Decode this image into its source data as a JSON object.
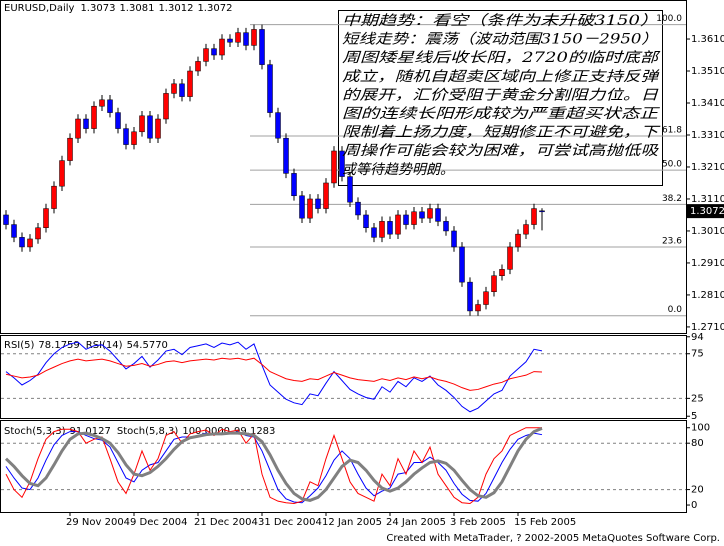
{
  "chart_data": [
    {
      "type": "candlestick",
      "title": "EURUSD,Daily",
      "categories": [
        null,
        null,
        null,
        null,
        null,
        null,
        null,
        null,
        "29 Nov 2004",
        null,
        null,
        null,
        null,
        null,
        null,
        null,
        "9 Dec 2004",
        null,
        null,
        null,
        null,
        null,
        null,
        null,
        "21 Dec 2004",
        null,
        null,
        null,
        null,
        null,
        null,
        null,
        "31 Dec 2004",
        null,
        null,
        null,
        null,
        null,
        null,
        null,
        "12 Jan 2005",
        null,
        null,
        null,
        null,
        null,
        null,
        null,
        "24 Jan 2005",
        null,
        null,
        null,
        null,
        null,
        null,
        null,
        "3 Feb 2005",
        null,
        null,
        null,
        null,
        null,
        null,
        null,
        "15 Feb 2005",
        null,
        null,
        null
      ],
      "open": [
        1.306,
        1.303,
        1.299,
        1.296,
        1.2985,
        1.302,
        1.308,
        1.315,
        1.323,
        1.33,
        1.336,
        1.333,
        1.34,
        1.342,
        1.338,
        1.333,
        1.328,
        1.332,
        1.337,
        1.33,
        1.336,
        1.344,
        1.347,
        1.343,
        1.351,
        1.354,
        1.358,
        1.356,
        1.361,
        1.36,
        1.363,
        1.359,
        1.364,
        1.353,
        1.338,
        1.33,
        1.319,
        1.312,
        1.305,
        1.311,
        1.308,
        1.316,
        1.326,
        1.318,
        1.31,
        1.306,
        1.302,
        1.299,
        1.304,
        1.3,
        1.306,
        1.303,
        1.307,
        1.305,
        1.308,
        1.304,
        1.301,
        1.296,
        1.285,
        1.276,
        1.278,
        1.282,
        1.287,
        1.289,
        1.296,
        1.3,
        1.303,
        1.3073
      ],
      "high": [
        1.3075,
        1.3045,
        1.3005,
        1.3,
        1.3035,
        1.3095,
        1.3165,
        1.3245,
        1.3315,
        1.3375,
        1.3375,
        1.3415,
        1.3435,
        1.3435,
        1.3395,
        1.3345,
        1.3335,
        1.3385,
        1.3385,
        1.3375,
        1.3455,
        1.3485,
        1.3485,
        1.3525,
        1.3555,
        1.3595,
        1.3595,
        1.3625,
        1.3625,
        1.3645,
        1.3645,
        1.3655,
        1.3655,
        1.3545,
        1.3395,
        1.3315,
        1.3205,
        1.3135,
        1.3125,
        1.3125,
        1.3175,
        1.3275,
        1.3275,
        1.3195,
        1.3115,
        1.3075,
        1.3035,
        1.3055,
        1.3055,
        1.3075,
        1.3075,
        1.3085,
        1.3085,
        1.3095,
        1.3095,
        1.3055,
        1.3025,
        1.2975,
        1.2865,
        1.2795,
        1.2835,
        1.2885,
        1.2905,
        1.2975,
        1.3015,
        1.3045,
        1.3095,
        1.3081
      ],
      "low": [
        1.3015,
        1.2975,
        1.2945,
        1.2945,
        1.297,
        1.3005,
        1.3065,
        1.3135,
        1.3215,
        1.3285,
        1.3315,
        1.3315,
        1.3385,
        1.3365,
        1.3315,
        1.3265,
        1.3265,
        1.3305,
        1.3285,
        1.3285,
        1.3345,
        1.3425,
        1.3415,
        1.3415,
        1.3495,
        1.3525,
        1.3545,
        1.3545,
        1.3585,
        1.3585,
        1.3575,
        1.3575,
        1.3515,
        1.3365,
        1.3285,
        1.3175,
        1.3105,
        1.3035,
        1.3035,
        1.3065,
        1.3065,
        1.3145,
        1.3165,
        1.3085,
        1.3045,
        1.3005,
        1.2975,
        1.2975,
        1.2985,
        1.2985,
        1.3015,
        1.3015,
        1.3035,
        1.3035,
        1.3025,
        1.2995,
        1.2945,
        1.2835,
        1.2745,
        1.2745,
        1.2765,
        1.2805,
        1.2855,
        1.2875,
        1.2945,
        1.2985,
        1.3015,
        1.3012
      ],
      "close": [
        1.303,
        1.299,
        1.296,
        1.2985,
        1.302,
        1.308,
        1.315,
        1.323,
        1.33,
        1.336,
        1.333,
        1.34,
        1.342,
        1.338,
        1.333,
        1.328,
        1.332,
        1.337,
        1.33,
        1.336,
        1.344,
        1.347,
        1.343,
        1.351,
        1.354,
        1.358,
        1.356,
        1.361,
        1.36,
        1.363,
        1.359,
        1.364,
        1.353,
        1.338,
        1.33,
        1.319,
        1.312,
        1.305,
        1.311,
        1.308,
        1.316,
        1.326,
        1.318,
        1.31,
        1.306,
        1.302,
        1.299,
        1.304,
        1.3,
        1.306,
        1.303,
        1.307,
        1.305,
        1.308,
        1.304,
        1.301,
        1.296,
        1.285,
        1.276,
        1.278,
        1.282,
        1.287,
        1.289,
        1.296,
        1.3,
        1.303,
        1.308,
        1.3072
      ],
      "up_color": "#ff0000",
      "down_color": "#0000ff",
      "ylim": [
        1.2691,
        1.3732
      ],
      "yticks": [
        {
          "value": 1.361,
          "label": "1.3610"
        },
        {
          "value": 1.351,
          "label": "1.3510"
        },
        {
          "value": 1.341,
          "label": "1.3410"
        },
        {
          "value": 1.331,
          "label": "1.3310"
        },
        {
          "value": 1.321,
          "label": "1.3210"
        },
        {
          "value": 1.311,
          "label": "1.3110"
        },
        {
          "value": 1.301,
          "label": "1.3010"
        },
        {
          "value": 1.291,
          "label": "1.2910"
        },
        {
          "value": 1.281,
          "label": "1.2810"
        },
        {
          "value": 1.271,
          "label": "1.2710"
        }
      ],
      "fib": [
        {
          "value": 1.3655,
          "label": "100.0"
        },
        {
          "value": 1.3307,
          "label": "61.8"
        },
        {
          "value": 1.32,
          "label": "50.0"
        },
        {
          "value": 1.3093,
          "label": "38.2"
        },
        {
          "value": 1.296,
          "label": "23.6"
        },
        {
          "value": 1.2745,
          "label": "0.0"
        }
      ],
      "annotation_lines": [
        "中期趋势：看空（条件为未升破3150）",
        "短线走势：震荡（波动范围3150－2950）",
        "周图矮星线后收长阳，2720的临时底部",
        "成立，随机自超卖区域向上修正支持反弹",
        "的展开，汇价受阻于黄金分割阻力位。日",
        "图的连续长阳形成较为严重超买状态正",
        "限制着上扬力度，短期修正不可避免，下",
        "周操作可能会较为困难，可尝试高抛低吸",
        "或等待趋势明朗。"
      ]
    },
    {
      "type": "line",
      "ylim": [
        3,
        96
      ],
      "yticks": [
        94,
        75,
        25,
        5
      ],
      "levels": [
        75,
        25
      ],
      "series": [
        {
          "name": "RSI(5)",
          "color": "#0000ff",
          "values": [
            55,
            48,
            40,
            45,
            52,
            65,
            75,
            82,
            86,
            88,
            80,
            84,
            85,
            78,
            68,
            58,
            64,
            72,
            60,
            68,
            78,
            80,
            74,
            82,
            84,
            86,
            82,
            87,
            85,
            88,
            80,
            86,
            62,
            40,
            32,
            24,
            20,
            18,
            30,
            28,
            42,
            55,
            45,
            35,
            30,
            26,
            24,
            38,
            32,
            44,
            38,
            48,
            44,
            50,
            40,
            34,
            26,
            16,
            10,
            14,
            22,
            30,
            34,
            50,
            58,
            66,
            80,
            78.1759
          ]
        },
        {
          "name": "RSI(14)",
          "color": "#ff0000",
          "last_value_label": "54.5770",
          "values": [
            52,
            50,
            48,
            49,
            51,
            56,
            60,
            64,
            67,
            69,
            67,
            68,
            69,
            67,
            64,
            61,
            62,
            64,
            61,
            63,
            66,
            67,
            65,
            67,
            68,
            69,
            68,
            70,
            69,
            70,
            68,
            70,
            63,
            55,
            51,
            47,
            45,
            44,
            47,
            46,
            50,
            54,
            51,
            48,
            46,
            45,
            44,
            47,
            45,
            48,
            46,
            49,
            47,
            49,
            46,
            44,
            41,
            37,
            34,
            35,
            38,
            41,
            43,
            47,
            49,
            51,
            55,
            54.577
          ]
        }
      ]
    },
    {
      "type": "line",
      "ylim": [
        -9,
        110
      ],
      "yticks": [
        100,
        80,
        20,
        0
      ],
      "levels": [
        80,
        20
      ],
      "series": [
        {
          "name": "Stoch(5,3,3)",
          "color": "#0000ff",
          "values": [
            50,
            35,
            22,
            20,
            35,
            58,
            78,
            90,
            95,
            95,
            90,
            86,
            84,
            75,
            55,
            35,
            30,
            45,
            52,
            55,
            70,
            85,
            88,
            88,
            90,
            93,
            92,
            93,
            93,
            95,
            90,
            88,
            70,
            45,
            20,
            8,
            4,
            3,
            12,
            22,
            38,
            58,
            70,
            60,
            40,
            22,
            12,
            18,
            22,
            40,
            42,
            55,
            55,
            62,
            55,
            45,
            28,
            14,
            6,
            5,
            15,
            35,
            55,
            72,
            85,
            90,
            93,
            91.0127
          ]
        },
        {
          "name": "Stoch(5,8,3)",
          "color": "#ff0000",
          "last_value_label": "100.0000",
          "values": [
            40,
            20,
            10,
            30,
            60,
            85,
            95,
            98,
            98,
            95,
            80,
            85,
            88,
            60,
            30,
            15,
            40,
            70,
            45,
            60,
            90,
            95,
            80,
            92,
            95,
            97,
            90,
            98,
            95,
            97,
            80,
            92,
            40,
            10,
            5,
            3,
            2,
            5,
            30,
            25,
            60,
            90,
            60,
            30,
            15,
            10,
            5,
            40,
            25,
            60,
            40,
            70,
            55,
            75,
            40,
            25,
            10,
            3,
            2,
            10,
            40,
            60,
            70,
            90,
            95,
            100,
            100,
            100
          ]
        },
        {
          "color": "#808080",
          "width": 3,
          "values": [
            60,
            50,
            38,
            28,
            25,
            35,
            52,
            70,
            85,
            92,
            93,
            90,
            86,
            80,
            68,
            52,
            40,
            38,
            42,
            50,
            60,
            72,
            82,
            87,
            89,
            91,
            92,
            92,
            93,
            93,
            92,
            90,
            82,
            65,
            45,
            28,
            15,
            8,
            6,
            10,
            20,
            35,
            50,
            58,
            55,
            45,
            32,
            22,
            18,
            22,
            30,
            40,
            48,
            55,
            57,
            54,
            45,
            32,
            20,
            12,
            10,
            16,
            30,
            50,
            70,
            85,
            95,
            99.1283
          ]
        }
      ]
    }
  ],
  "footer": "Created with MetaTrader, ? 2002-2005 MetaQuotes Software Corp."
}
